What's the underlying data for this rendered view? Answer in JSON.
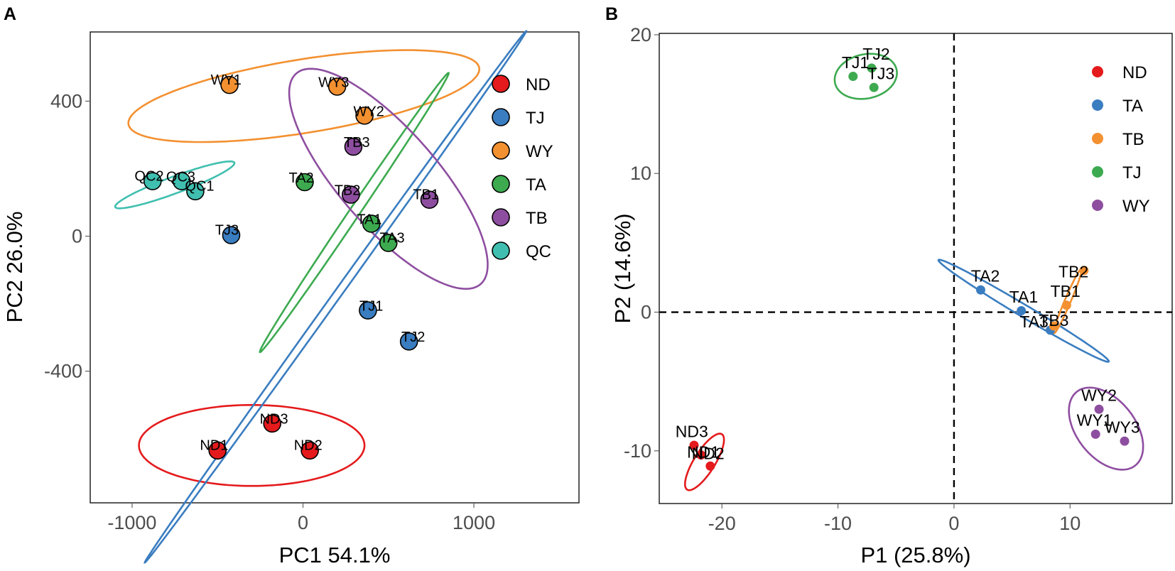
{
  "chart_data": [
    {
      "panel": "A",
      "type": "scatter",
      "xlabel": "PC1 54.1%",
      "ylabel": "PC2 26.0%",
      "xlim": [
        -1245,
        1615
      ],
      "ylim": [
        -790,
        605
      ],
      "xticks": [
        -1000,
        0,
        1000
      ],
      "yticks": [
        -400,
        0,
        400
      ],
      "legend": {
        "position": "top-right",
        "entries": [
          {
            "name": "ND",
            "color": "#E41A1C"
          },
          {
            "name": "TJ",
            "color": "#3A7DC0"
          },
          {
            "name": "WY",
            "color": "#F39030"
          },
          {
            "name": "TA",
            "color": "#3DAA50"
          },
          {
            "name": "TB",
            "color": "#8E4EA0"
          },
          {
            "name": "QC",
            "color": "#40BFB0"
          }
        ]
      },
      "groups": [
        {
          "name": "ND",
          "color": "#E41A1C",
          "points": [
            {
              "label": "ND1",
              "x": -500,
              "y": -635,
              "dx": -20,
              "dy": 1.6
            },
            {
              "label": "ND2",
              "x": 40,
              "y": -635,
              "dx": -10,
              "dy": 1.6
            },
            {
              "label": "ND3",
              "x": -180,
              "y": -555,
              "dx": 10,
              "dy": -0.9
            }
          ],
          "ellipse": {
            "cx": -300,
            "cy": -620,
            "rx": 660,
            "ry": 120,
            "angle": 0
          }
        },
        {
          "name": "TJ",
          "color": "#3A7DC0",
          "points": [
            {
              "label": "TJ1",
              "x": 380,
              "y": -220,
              "dx": 20,
              "dy": -0.9
            },
            {
              "label": "TJ2",
              "x": 620,
              "y": -312,
              "dx": 25,
              "dy": -0.9
            },
            {
              "label": "TJ3",
              "x": -420,
              "y": 3,
              "dx": -25,
              "dy": 1.6
            }
          ],
          "ellipse": {
            "cx": 190,
            "cy": -180,
            "rx": 1365,
            "ry": 16,
            "angle": 35.2
          }
        },
        {
          "name": "WY",
          "color": "#F39030",
          "points": [
            {
              "label": "WY1",
              "x": -430,
              "y": 448,
              "dx": -20,
              "dy": 1.6
            },
            {
              "label": "WY2",
              "x": 360,
              "y": 357,
              "dx": 25,
              "dy": -0.9
            },
            {
              "label": "WY3",
              "x": 200,
              "y": 443,
              "dx": -20,
              "dy": -0.9
            }
          ],
          "ellipse": {
            "cx": 5,
            "cy": 415,
            "rx": 1030,
            "ry": 110,
            "angle": 4.5
          }
        },
        {
          "name": "TA",
          "color": "#3DAA50",
          "points": [
            {
              "label": "TA1",
              "x": 400,
              "y": 37,
              "dx": -12,
              "dy": -0.9
            },
            {
              "label": "TA2",
              "x": 10,
              "y": 160,
              "dx": -20,
              "dy": -0.9
            },
            {
              "label": "TA3",
              "x": 500,
              "y": -20,
              "dx": 22,
              "dy": 1.6
            }
          ],
          "ellipse": {
            "cx": 300,
            "cy": 70,
            "rx": 690,
            "ry": 22,
            "angle": 36.8
          }
        },
        {
          "name": "TB",
          "color": "#8E4EA0",
          "points": [
            {
              "label": "TB1",
              "x": 740,
              "y": 108,
              "dx": -20,
              "dy": 1.6
            },
            {
              "label": "TB2",
              "x": 280,
              "y": 123,
              "dx": -20,
              "dy": -0.9
            },
            {
              "label": "TB3",
              "x": 295,
              "y": 265,
              "dx": 20,
              "dy": -0.9
            }
          ],
          "ellipse": {
            "cx": 500,
            "cy": 170,
            "rx": 640,
            "ry": 185,
            "angle": -26
          }
        },
        {
          "name": "QC",
          "color": "#40BFB0",
          "points": [
            {
              "label": "QC1",
              "x": -630,
              "y": 133,
              "dx": 25,
              "dy": 1.6
            },
            {
              "label": "QC2",
              "x": -880,
              "y": 163,
              "dx": -20,
              "dy": 1.6
            },
            {
              "label": "QC3",
              "x": -710,
              "y": 163,
              "dx": -5,
              "dy": -0.9
            }
          ],
          "ellipse": {
            "cx": -750,
            "cy": 152,
            "rx": 355,
            "ry": 26,
            "angle": 10.5
          }
        }
      ]
    },
    {
      "panel": "B",
      "type": "scatter",
      "xlabel": "P1 (25.8%)",
      "ylabel": "P2 (14.6%)",
      "xlim": [
        -25.4,
        18.8
      ],
      "ylim": [
        -13.8,
        20.1
      ],
      "xticks": [
        -20,
        -10,
        0,
        10
      ],
      "yticks": [
        -10,
        0,
        10,
        20
      ],
      "reference_lines": {
        "x": 0,
        "y": 0,
        "style": "dashed"
      },
      "legend": {
        "position": "top-right",
        "entries": [
          {
            "name": "ND",
            "color": "#E41A1C"
          },
          {
            "name": "TA",
            "color": "#3A7DC0"
          },
          {
            "name": "TB",
            "color": "#F39030"
          },
          {
            "name": "TJ",
            "color": "#3DAA50"
          },
          {
            "name": "WY",
            "color": "#8E4EA0"
          }
        ]
      },
      "groups": [
        {
          "name": "ND",
          "color": "#E41A1C",
          "points": [
            {
              "label": "ND1",
              "x": -21.8,
              "y": -10.3,
              "dx": 0.2,
              "dy": -0.2
            },
            {
              "label": "ND2",
              "x": -21.0,
              "y": -11.1,
              "dx": -0.2,
              "dy": 0.5
            },
            {
              "label": "ND3",
              "x": -22.4,
              "y": -9.6,
              "dx": -0.2,
              "dy": 0.6
            }
          ],
          "ellipse": {
            "cx": -21.5,
            "cy": -10.8,
            "rx": 2.5,
            "ry": 0.85,
            "angle": 52
          }
        },
        {
          "name": "TA",
          "color": "#3A7DC0",
          "points": [
            {
              "label": "TA1",
              "x": 5.8,
              "y": 0.1,
              "dx": 0.2,
              "dy": 0.6
            },
            {
              "label": "TA2",
              "x": 2.3,
              "y": 1.6,
              "dx": 0.4,
              "dy": 0.6
            },
            {
              "label": "TA3",
              "x": 8.3,
              "y": -1.3,
              "dx": -1.4,
              "dy": 0.2
            }
          ],
          "ellipse": {
            "cx": 6.0,
            "cy": 0.1,
            "rx": 8.2,
            "ry": 0.45,
            "angle": -26.5
          }
        },
        {
          "name": "TB",
          "color": "#F39030",
          "points": [
            {
              "label": "TB1",
              "x": 9.7,
              "y": 0.5,
              "dx": -0.1,
              "dy": 0.6
            },
            {
              "label": "TB2",
              "x": 11.2,
              "y": 3.0,
              "dx": -0.9,
              "dy": -0.5
            },
            {
              "label": "TB3",
              "x": 8.6,
              "y": -1.0,
              "dx": 0,
              "dy": 0
            }
          ],
          "ellipse": {
            "cx": 9.8,
            "cy": 0.8,
            "rx": 2.6,
            "ry": 0.25,
            "angle": 63
          }
        },
        {
          "name": "TJ",
          "color": "#3DAA50",
          "points": [
            {
              "label": "TJ1",
              "x": -8.7,
              "y": 17.0,
              "dx": 0.2,
              "dy": 0.6
            },
            {
              "label": "TJ2",
              "x": -7.1,
              "y": 17.6,
              "dx": 0.4,
              "dy": 0.6
            },
            {
              "label": "TJ3",
              "x": -6.9,
              "y": 16.2,
              "dx": 0.6,
              "dy": 0.6
            }
          ],
          "ellipse": {
            "cx": -7.6,
            "cy": 17.0,
            "rx": 2.7,
            "ry": 1.6,
            "angle": 8
          }
        },
        {
          "name": "WY",
          "color": "#8E4EA0",
          "points": [
            {
              "label": "WY1",
              "x": 12.2,
              "y": -8.8,
              "dx": -0.1,
              "dy": 0.6
            },
            {
              "label": "WY2",
              "x": 12.5,
              "y": -7.0,
              "dx": 0,
              "dy": 0.6
            },
            {
              "label": "WY3",
              "x": 14.7,
              "y": -9.3,
              "dx": -0.2,
              "dy": 0.6
            }
          ],
          "ellipse": {
            "cx": 13.1,
            "cy": -8.4,
            "rx": 3.7,
            "ry": 2.3,
            "angle": -40
          }
        }
      ]
    }
  ]
}
